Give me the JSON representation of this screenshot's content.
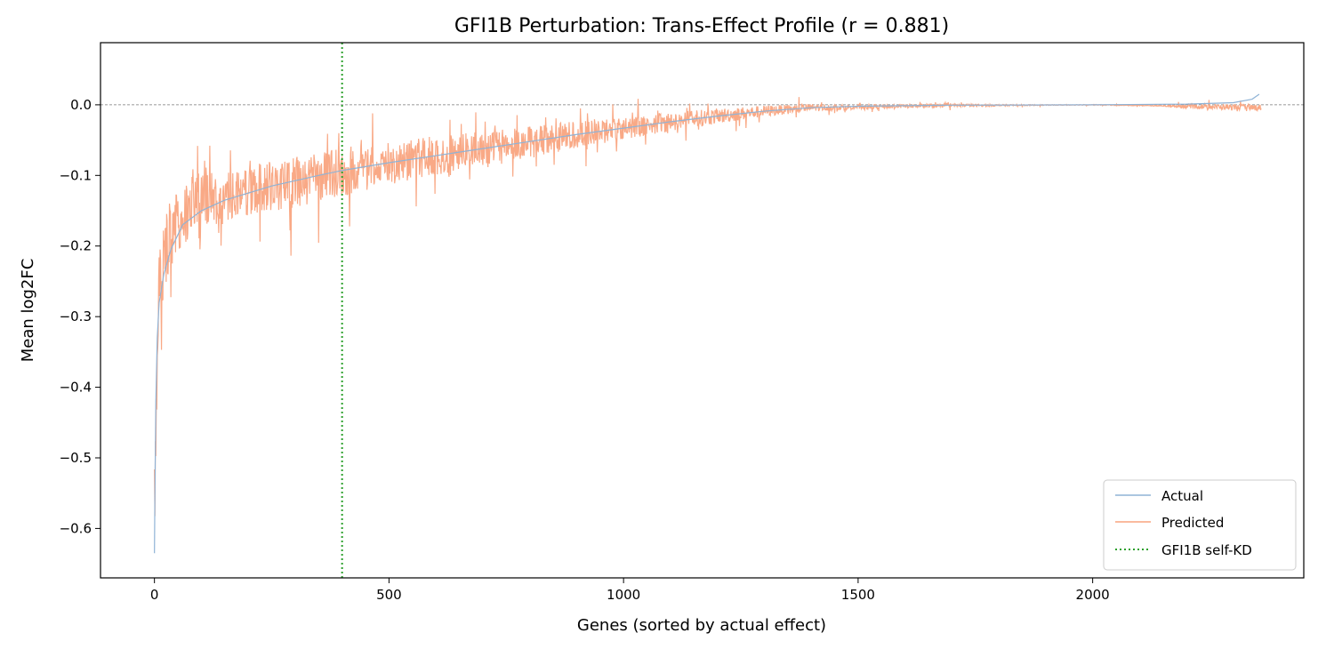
{
  "chart_data": {
    "type": "line",
    "title": "GFI1B Perturbation: Trans-Effect Profile (r = 0.881)",
    "xlabel": "Genes (sorted by actual effect)",
    "ylabel": "Mean log2FC",
    "xlim": [
      -115,
      2450
    ],
    "ylim": [
      -0.67,
      0.088
    ],
    "xticks": [
      0,
      500,
      1000,
      1500,
      2000
    ],
    "xtick_labels": [
      "0",
      "500",
      "1000",
      "1500",
      "2000"
    ],
    "yticks": [
      0.0,
      -0.1,
      -0.2,
      -0.3,
      -0.4,
      -0.5,
      -0.6
    ],
    "ytick_labels": [
      "0.0",
      "−0.1",
      "−0.2",
      "−0.3",
      "−0.4",
      "−0.5",
      "−0.6"
    ],
    "n_genes": 2360,
    "grid": false,
    "legend_position": "lower-right",
    "zero_reference_line": 0.0,
    "series": [
      {
        "name": "Actual",
        "color": "#8fb3d6",
        "curve_points": [
          [
            0,
            -0.635
          ],
          [
            1,
            -0.55
          ],
          [
            3,
            -0.42
          ],
          [
            6,
            -0.33
          ],
          [
            10,
            -0.28
          ],
          [
            20,
            -0.24
          ],
          [
            35,
            -0.205
          ],
          [
            60,
            -0.17
          ],
          [
            100,
            -0.15
          ],
          [
            150,
            -0.135
          ],
          [
            250,
            -0.115
          ],
          [
            350,
            -0.1
          ],
          [
            400,
            -0.093
          ],
          [
            500,
            -0.082
          ],
          [
            600,
            -0.072
          ],
          [
            700,
            -0.062
          ],
          [
            800,
            -0.052
          ],
          [
            900,
            -0.042
          ],
          [
            1000,
            -0.033
          ],
          [
            1100,
            -0.024
          ],
          [
            1200,
            -0.016
          ],
          [
            1300,
            -0.009
          ],
          [
            1400,
            -0.004
          ],
          [
            1500,
            -0.002
          ],
          [
            1700,
            -0.0005
          ],
          [
            2000,
            0.0
          ],
          [
            2200,
            0.001
          ],
          [
            2300,
            0.003
          ],
          [
            2340,
            0.008
          ],
          [
            2355,
            0.015
          ]
        ]
      },
      {
        "name": "Predicted",
        "color": "#f9a47f",
        "curve_points": [
          [
            0,
            -0.54
          ],
          [
            10,
            -0.25
          ],
          [
            25,
            -0.2
          ],
          [
            60,
            -0.15
          ],
          [
            100,
            -0.14
          ],
          [
            200,
            -0.12
          ],
          [
            300,
            -0.11
          ],
          [
            400,
            -0.095
          ],
          [
            500,
            -0.082
          ],
          [
            600,
            -0.072
          ],
          [
            700,
            -0.062
          ],
          [
            800,
            -0.052
          ],
          [
            900,
            -0.042
          ],
          [
            1000,
            -0.033
          ],
          [
            1100,
            -0.024
          ],
          [
            1200,
            -0.016
          ],
          [
            1300,
            -0.009
          ],
          [
            1400,
            -0.004
          ],
          [
            1500,
            -0.003
          ],
          [
            1700,
            -0.001
          ],
          [
            2000,
            0.0
          ],
          [
            2200,
            -0.002
          ],
          [
            2355,
            -0.004
          ]
        ],
        "noise_envelope": [
          [
            0,
            0.1
          ],
          [
            50,
            0.09
          ],
          [
            150,
            0.07
          ],
          [
            300,
            0.065
          ],
          [
            450,
            0.06
          ],
          [
            600,
            0.05
          ],
          [
            800,
            0.04
          ],
          [
            1000,
            0.03
          ],
          [
            1200,
            0.02
          ],
          [
            1350,
            0.012
          ],
          [
            1500,
            0.006
          ],
          [
            1700,
            0.004
          ],
          [
            1900,
            0.001
          ],
          [
            2150,
            0.001
          ],
          [
            2200,
            0.006
          ],
          [
            2355,
            0.008
          ]
        ]
      }
    ],
    "vertical_marker": {
      "label": "GFI1B self-KD",
      "x": 400,
      "color": "#2ca02c"
    }
  }
}
